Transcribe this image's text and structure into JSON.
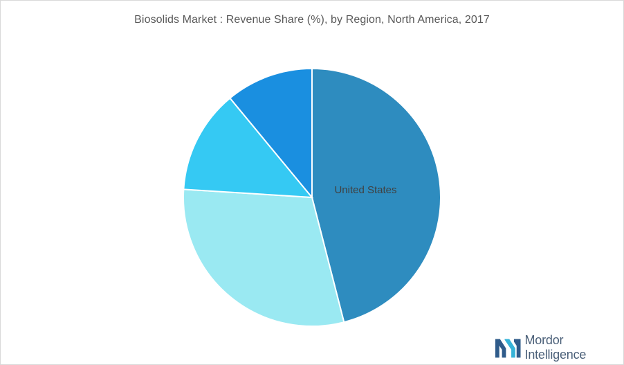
{
  "chart_data": {
    "type": "pie",
    "title": "Biosolids Market : Revenue Share (%), by Region, North America, 2017",
    "slices": [
      {
        "label": "United States",
        "value": 46,
        "color": "#2e8cbf",
        "show_label": true
      },
      {
        "label": "",
        "value": 30,
        "color": "#9ae9f2",
        "show_label": false
      },
      {
        "label": "",
        "value": 13,
        "color": "#35c9f3",
        "show_label": false
      },
      {
        "label": "",
        "value": 11,
        "color": "#1a8fe0",
        "show_label": false
      }
    ],
    "start_angle_deg": 0,
    "direction": "clockwise"
  },
  "branding": {
    "logo_name": "Mordor Intelligence",
    "logo_colors": [
      "#2f5b8a",
      "#36b3d8"
    ]
  }
}
